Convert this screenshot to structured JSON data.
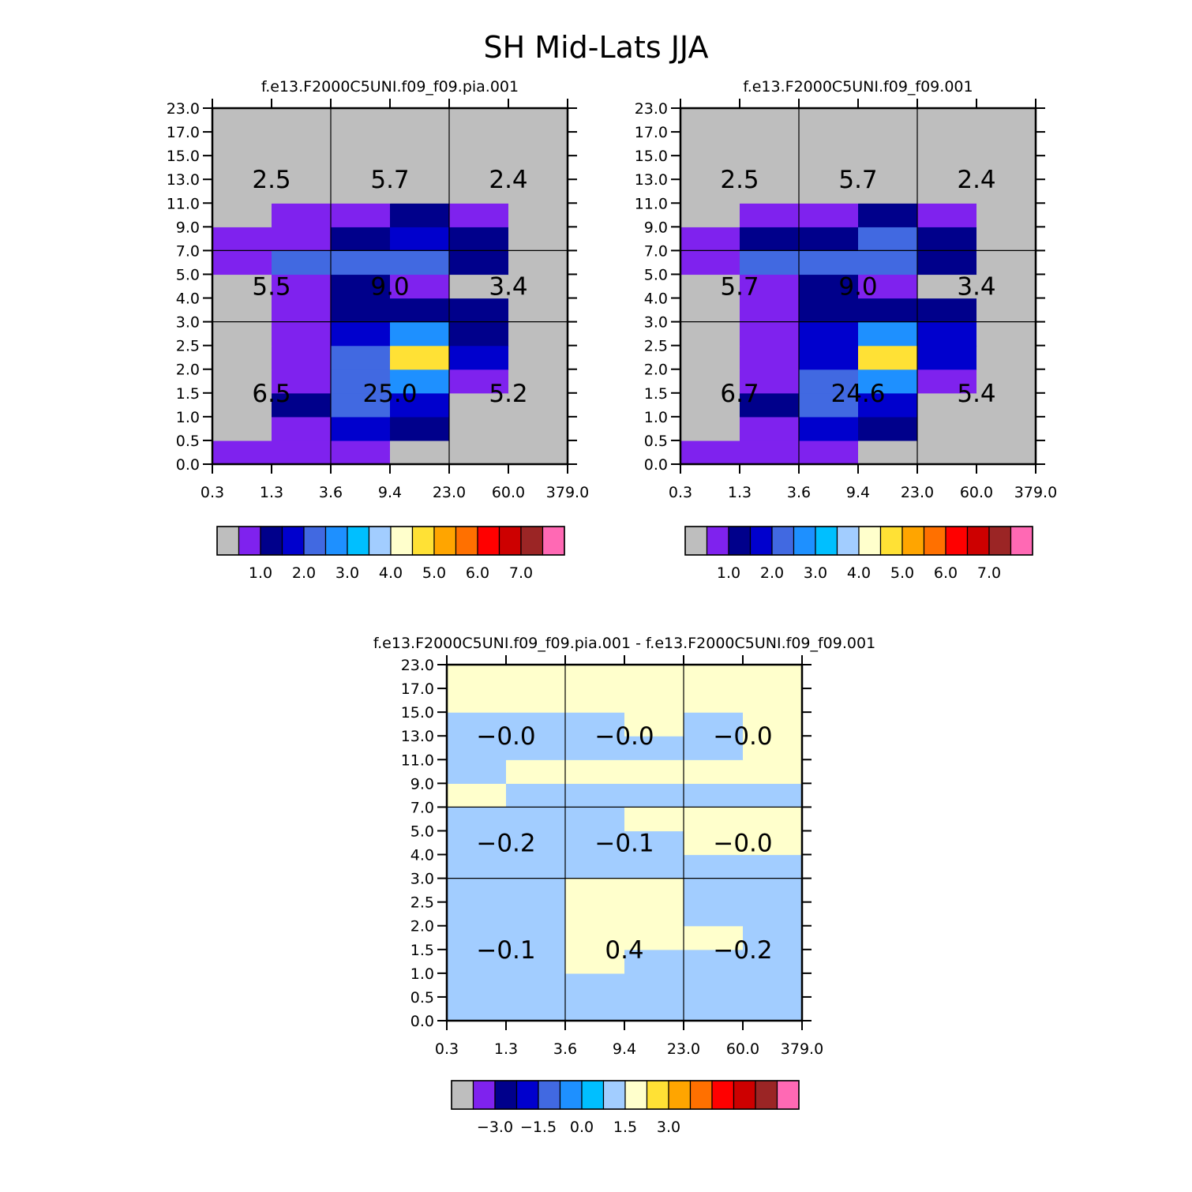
{
  "title": "SH Mid-Lats JJA",
  "palette": {
    "colors": [
      "#bebebe",
      "#7f22ee",
      "#00008b",
      "#0000cd",
      "#4169e1",
      "#1e90ff",
      "#00bfff",
      "#a2cdff",
      "#ffffcc",
      "#ffe135",
      "#ffa500",
      "#ff7000",
      "#ff0000",
      "#cd0000",
      "#9b2525",
      "#ff69b4"
    ],
    "labels_abs": [
      "1.0",
      "2.0",
      "3.0",
      "4.0",
      "5.0",
      "6.0",
      "7.0"
    ],
    "labels_diff": [
      "-3.0",
      "-1.5",
      "0.0",
      "1.5",
      "3.0"
    ]
  },
  "chart_data": [
    {
      "type": "heatmap",
      "title": "f.e13.F2000C5UNI.f09_f09.pia.001",
      "x_ticks": [
        "0.3",
        "1.3",
        "3.6",
        "9.4",
        "23.0",
        "60.0",
        "379.0"
      ],
      "y_ticks": [
        "0.0",
        "0.5",
        "1.0",
        "1.5",
        "2.0",
        "2.5",
        "3.0",
        "4.0",
        "5.0",
        "7.0",
        "9.0",
        "11.0",
        "13.0",
        "15.0",
        "17.0",
        "23.0"
      ],
      "cells": [
        [
          1,
          1,
          1,
          0,
          0,
          0
        ],
        [
          0,
          1,
          3,
          2,
          0,
          0
        ],
        [
          0,
          2,
          4,
          3,
          0,
          0
        ],
        [
          0,
          1,
          4,
          5,
          1,
          0
        ],
        [
          0,
          1,
          4,
          9,
          3,
          0
        ],
        [
          0,
          1,
          3,
          5,
          2,
          0
        ],
        [
          0,
          1,
          2,
          2,
          2,
          0
        ],
        [
          0,
          1,
          2,
          1,
          0,
          0
        ],
        [
          1,
          4,
          4,
          4,
          2,
          0
        ],
        [
          1,
          1,
          2,
          3,
          2,
          0
        ],
        [
          0,
          1,
          1,
          2,
          1,
          0
        ],
        [
          0,
          0,
          0,
          0,
          0,
          0
        ],
        [
          0,
          0,
          0,
          0,
          0,
          0
        ],
        [
          0,
          0,
          0,
          0,
          0,
          0
        ],
        [
          0,
          0,
          0,
          0,
          0,
          0
        ]
      ],
      "region_labels": [
        [
          "6.5",
          "25.0",
          "5.2"
        ],
        [
          "5.5",
          "9.0",
          "3.4"
        ],
        [
          "2.5",
          "5.7",
          "2.4"
        ]
      ]
    },
    {
      "type": "heatmap",
      "title": "f.e13.F2000C5UNI.f09_f09.001",
      "x_ticks": [
        "0.3",
        "1.3",
        "3.6",
        "9.4",
        "23.0",
        "60.0",
        "379.0"
      ],
      "y_ticks": [
        "0.0",
        "0.5",
        "1.0",
        "1.5",
        "2.0",
        "2.5",
        "3.0",
        "4.0",
        "5.0",
        "7.0",
        "9.0",
        "11.0",
        "13.0",
        "15.0",
        "17.0",
        "23.0"
      ],
      "cells": [
        [
          1,
          1,
          1,
          0,
          0,
          0
        ],
        [
          0,
          1,
          3,
          2,
          0,
          0
        ],
        [
          0,
          2,
          4,
          3,
          0,
          0
        ],
        [
          0,
          1,
          4,
          5,
          1,
          0
        ],
        [
          0,
          1,
          3,
          9,
          3,
          0
        ],
        [
          0,
          1,
          3,
          5,
          3,
          0
        ],
        [
          0,
          1,
          2,
          2,
          2,
          0
        ],
        [
          0,
          1,
          2,
          1,
          0,
          0
        ],
        [
          1,
          4,
          4,
          4,
          2,
          0
        ],
        [
          1,
          2,
          2,
          4,
          2,
          0
        ],
        [
          0,
          1,
          1,
          2,
          1,
          0
        ],
        [
          0,
          0,
          0,
          0,
          0,
          0
        ],
        [
          0,
          0,
          0,
          0,
          0,
          0
        ],
        [
          0,
          0,
          0,
          0,
          0,
          0
        ],
        [
          0,
          0,
          0,
          0,
          0,
          0
        ]
      ],
      "region_labels": [
        [
          "6.7",
          "24.6",
          "5.4"
        ],
        [
          "5.7",
          "9.0",
          "3.4"
        ],
        [
          "2.5",
          "5.7",
          "2.4"
        ]
      ]
    },
    {
      "type": "heatmap",
      "title": "f.e13.F2000C5UNI.f09_f09.pia.001 - f.e13.F2000C5UNI.f09_f09.001",
      "x_ticks": [
        "0.3",
        "1.3",
        "3.6",
        "9.4",
        "23.0",
        "60.0",
        "379.0"
      ],
      "y_ticks": [
        "0.0",
        "0.5",
        "1.0",
        "1.5",
        "2.0",
        "2.5",
        "3.0",
        "4.0",
        "5.0",
        "7.0",
        "9.0",
        "11.0",
        "13.0",
        "15.0",
        "17.0",
        "23.0"
      ],
      "cells": [
        [
          7,
          7,
          7,
          7,
          7,
          7
        ],
        [
          7,
          7,
          7,
          7,
          7,
          7
        ],
        [
          7,
          7,
          8,
          7,
          7,
          7
        ],
        [
          7,
          7,
          8,
          8,
          8,
          7
        ],
        [
          7,
          7,
          8,
          8,
          7,
          7
        ],
        [
          7,
          7,
          8,
          8,
          7,
          7
        ],
        [
          7,
          7,
          7,
          7,
          7,
          7
        ],
        [
          7,
          7,
          7,
          7,
          8,
          8
        ],
        [
          7,
          7,
          7,
          8,
          8,
          8
        ],
        [
          8,
          7,
          7,
          7,
          7,
          7
        ],
        [
          7,
          8,
          8,
          8,
          8,
          8
        ],
        [
          7,
          7,
          7,
          7,
          7,
          8
        ],
        [
          7,
          7,
          7,
          8,
          7,
          8
        ],
        [
          8,
          8,
          8,
          8,
          8,
          8
        ],
        [
          8,
          8,
          8,
          8,
          8,
          8
        ]
      ],
      "region_labels": [
        [
          "−0.1",
          "0.4",
          "−0.2"
        ],
        [
          "−0.2",
          "−0.1",
          "−0.0"
        ],
        [
          "−0.0",
          "−0.0",
          "−0.0"
        ]
      ]
    }
  ]
}
